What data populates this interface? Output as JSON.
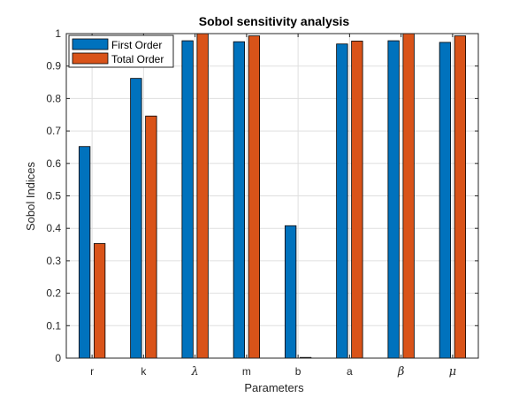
{
  "chart_data": {
    "type": "bar",
    "title": "Sobol sensitivity analysis",
    "xlabel": "Parameters",
    "ylabel": "Sobol Indices",
    "categories": [
      "r",
      "k",
      "λ",
      "m",
      "b",
      "a",
      "β",
      "μ"
    ],
    "ylim": [
      0,
      1
    ],
    "yticks": [
      "0",
      "0.1",
      "0.2",
      "0.3",
      "0.4",
      "0.5",
      "0.6",
      "0.7",
      "0.8",
      "0.9",
      "1"
    ],
    "grid": true,
    "legend_position": "top-left",
    "series": [
      {
        "name": "First Order",
        "color": "#0072BD",
        "values": [
          0.652,
          0.862,
          0.978,
          0.975,
          0.408,
          0.968,
          0.978,
          0.973
        ]
      },
      {
        "name": "Total Order",
        "color": "#D95319",
        "values": [
          0.353,
          0.746,
          1.0,
          0.993,
          0.0,
          0.977,
          1.0,
          0.993
        ]
      }
    ]
  }
}
